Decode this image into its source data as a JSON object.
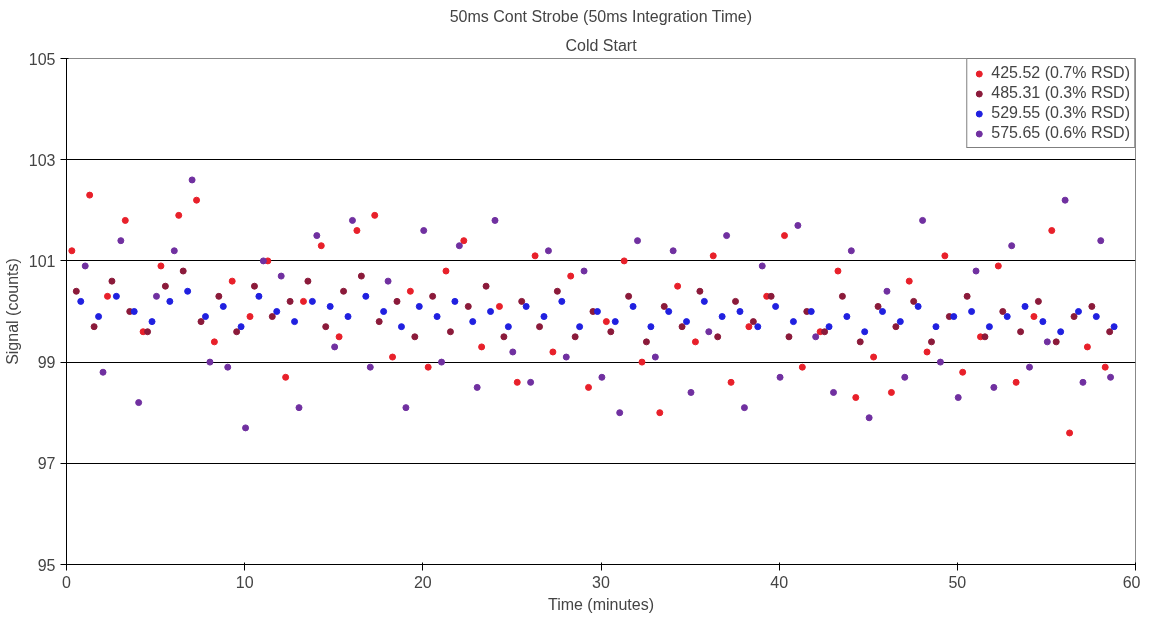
{
  "chart_data": {
    "type": "scatter",
    "title": "50ms Cont Strobe (50ms Integration Time)",
    "subtitle": "Cold Start",
    "xlabel": "Time (minutes)",
    "ylabel": "Signal (counts)",
    "xlim": [
      0,
      60
    ],
    "xticks": [
      0,
      10,
      20,
      30,
      40,
      50,
      60
    ],
    "ylim": [
      95,
      105
    ],
    "yticks": [
      95,
      97,
      99,
      101,
      103,
      105
    ],
    "grid": "y",
    "legend": "top right",
    "marker": "circle",
    "series": [
      {
        "name": "425.52 (0.7% RSD)",
        "color": "#e8202a",
        "x": [
          0.3,
          1.3,
          2.3,
          3.3,
          4.3,
          5.3,
          6.3,
          7.3,
          8.3,
          9.3,
          10.3,
          11.3,
          12.3,
          13.3,
          14.3,
          15.3,
          16.3,
          17.3,
          18.3,
          19.3,
          20.3,
          21.3,
          22.3,
          23.3,
          24.3,
          25.3,
          26.3,
          27.3,
          28.3,
          29.3,
          30.3,
          31.3,
          32.3,
          33.3,
          34.3,
          35.3,
          36.3,
          37.3,
          38.3,
          39.3,
          40.3,
          41.3,
          42.3,
          43.3,
          44.3,
          45.3,
          46.3,
          47.3,
          48.3,
          49.3,
          50.3,
          51.3,
          52.3,
          53.3,
          54.3,
          55.3,
          56.3,
          57.3,
          58.3
        ],
        "values": [
          101.2,
          102.3,
          100.3,
          101.8,
          99.6,
          100.9,
          101.9,
          102.2,
          99.4,
          100.6,
          99.9,
          101.0,
          98.7,
          100.2,
          101.3,
          99.5,
          101.6,
          101.9,
          99.1,
          100.4,
          98.9,
          100.8,
          101.4,
          99.3,
          100.1,
          98.6,
          101.1,
          99.2,
          100.7,
          98.5,
          99.8,
          101.0,
          99.0,
          98.0,
          100.5,
          99.4,
          101.1,
          98.6,
          99.7,
          100.3,
          101.5,
          98.9,
          99.6,
          100.8,
          98.3,
          99.1,
          98.4,
          100.6,
          99.2,
          101.1,
          98.8,
          99.5,
          100.9,
          98.6,
          99.9,
          101.6,
          97.6,
          99.3,
          98.9
        ]
      },
      {
        "name": "485.31 (0.3% RSD)",
        "color": "#8b1a3a",
        "x": [
          0.55,
          1.55,
          2.55,
          3.55,
          4.55,
          5.55,
          6.55,
          7.55,
          8.55,
          9.55,
          10.55,
          11.55,
          12.55,
          13.55,
          14.55,
          15.55,
          16.55,
          17.55,
          18.55,
          19.55,
          20.55,
          21.55,
          22.55,
          23.55,
          24.55,
          25.55,
          26.55,
          27.55,
          28.55,
          29.55,
          30.55,
          31.55,
          32.55,
          33.55,
          34.55,
          35.55,
          36.55,
          37.55,
          38.55,
          39.55,
          40.55,
          41.55,
          42.55,
          43.55,
          44.55,
          45.55,
          46.55,
          47.55,
          48.55,
          49.55,
          50.55,
          51.55,
          52.55,
          53.55,
          54.55,
          55.55,
          56.55,
          57.55,
          58.55
        ],
        "values": [
          100.4,
          99.7,
          100.6,
          100.0,
          99.6,
          100.5,
          100.8,
          99.8,
          100.3,
          99.6,
          100.5,
          99.9,
          100.2,
          100.6,
          99.7,
          100.4,
          100.7,
          99.8,
          100.2,
          99.5,
          100.3,
          99.6,
          100.1,
          100.5,
          99.5,
          100.2,
          99.7,
          100.4,
          99.5,
          100.0,
          99.6,
          100.3,
          99.4,
          100.1,
          99.7,
          100.4,
          99.5,
          100.2,
          99.8,
          100.3,
          99.5,
          100.0,
          99.6,
          100.3,
          99.4,
          100.1,
          99.7,
          100.2,
          99.4,
          99.9,
          100.3,
          99.5,
          100.0,
          99.6,
          100.2,
          99.4,
          99.9,
          100.1,
          99.6
        ]
      },
      {
        "name": "529.55 (0.3% RSD)",
        "color": "#2020e0",
        "x": [
          0.8,
          1.8,
          2.8,
          3.8,
          4.8,
          5.8,
          6.8,
          7.8,
          8.8,
          9.8,
          10.8,
          11.8,
          12.8,
          13.8,
          14.8,
          15.8,
          16.8,
          17.8,
          18.8,
          19.8,
          20.8,
          21.8,
          22.8,
          23.8,
          24.8,
          25.8,
          26.8,
          27.8,
          28.8,
          29.8,
          30.8,
          31.8,
          32.8,
          33.8,
          34.8,
          35.8,
          36.8,
          37.8,
          38.8,
          39.8,
          40.8,
          41.8,
          42.8,
          43.8,
          44.8,
          45.8,
          46.8,
          47.8,
          48.8,
          49.8,
          50.8,
          51.8,
          52.8,
          53.8,
          54.8,
          55.8,
          56.8,
          57.8,
          58.8
        ],
        "values": [
          100.2,
          99.9,
          100.3,
          100.0,
          99.8,
          100.2,
          100.4,
          99.9,
          100.1,
          99.7,
          100.3,
          100.0,
          99.8,
          100.2,
          100.1,
          99.9,
          100.3,
          100.0,
          99.7,
          100.1,
          99.9,
          100.2,
          99.8,
          100.0,
          99.7,
          100.1,
          99.9,
          100.2,
          99.7,
          100.0,
          99.8,
          100.1,
          99.7,
          100.0,
          99.8,
          100.2,
          99.9,
          100.0,
          99.7,
          100.1,
          99.8,
          100.0,
          99.7,
          99.9,
          99.6,
          100.0,
          99.8,
          100.1,
          99.7,
          99.9,
          100.0,
          99.7,
          99.9,
          100.1,
          99.8,
          99.6,
          100.0,
          99.9,
          99.7
        ]
      },
      {
        "name": "575.65 (0.6% RSD)",
        "color": "#7030a0",
        "x": [
          1.05,
          2.05,
          3.05,
          4.05,
          5.05,
          6.05,
          7.05,
          8.05,
          9.05,
          10.05,
          11.05,
          12.05,
          13.05,
          14.05,
          15.05,
          16.05,
          17.05,
          18.05,
          19.05,
          20.05,
          21.05,
          22.05,
          23.05,
          24.05,
          25.05,
          26.05,
          27.05,
          28.05,
          29.05,
          30.05,
          31.05,
          32.05,
          33.05,
          34.05,
          35.05,
          36.05,
          37.05,
          38.05,
          39.05,
          40.05,
          41.05,
          42.05,
          43.05,
          44.05,
          45.05,
          46.05,
          47.05,
          48.05,
          49.05,
          50.05,
          51.05,
          52.05,
          53.05,
          54.05,
          55.05,
          56.05,
          57.05,
          58.05,
          58.6
        ],
        "values": [
          100.9,
          98.8,
          101.4,
          98.2,
          100.3,
          101.2,
          102.6,
          99.0,
          98.9,
          97.7,
          101.0,
          100.7,
          98.1,
          101.5,
          99.3,
          101.8,
          98.9,
          100.6,
          98.1,
          101.6,
          99.0,
          101.3,
          98.5,
          101.8,
          99.2,
          98.6,
          101.2,
          99.1,
          100.8,
          98.7,
          98.0,
          101.4,
          99.1,
          101.2,
          98.4,
          99.6,
          101.5,
          98.1,
          100.9,
          98.7,
          101.7,
          99.5,
          98.4,
          101.2,
          97.9,
          100.4,
          98.7,
          101.8,
          99.0,
          98.3,
          100.8,
          98.5,
          101.3,
          98.9,
          99.4,
          102.2,
          98.6,
          101.4,
          98.7
        ]
      }
    ]
  }
}
